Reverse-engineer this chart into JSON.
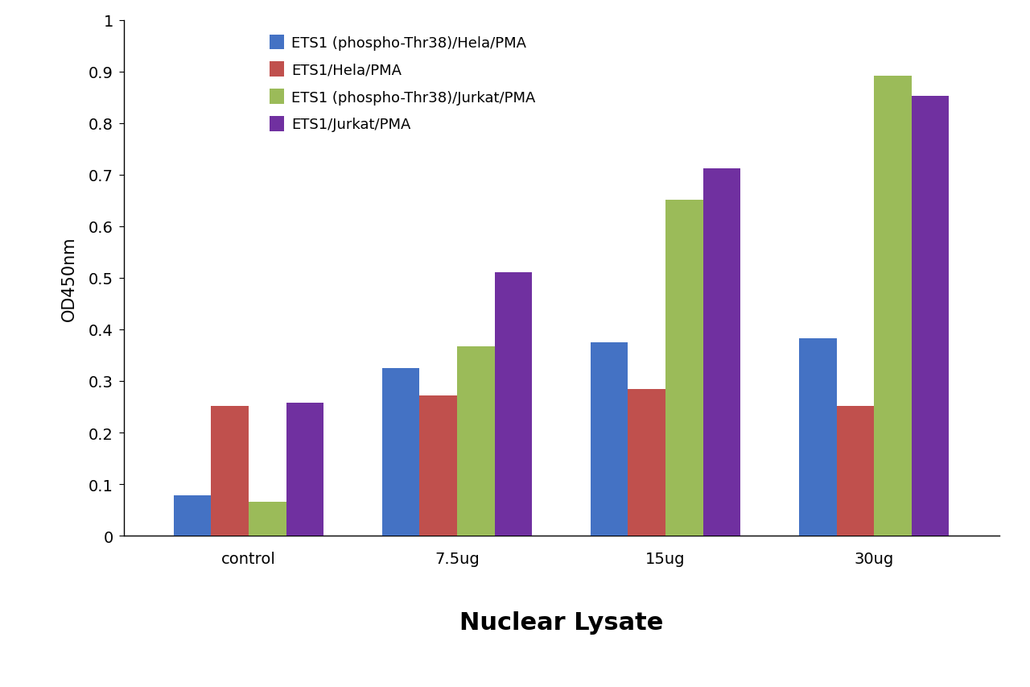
{
  "categories": [
    "control",
    "7.5ug",
    "15ug",
    "30ug"
  ],
  "series": [
    {
      "label": "ETS1 (phospho-Thr38)/Hela/PMA",
      "color": "#4472C4",
      "values": [
        0.078,
        0.325,
        0.375,
        0.383
      ]
    },
    {
      "label": "ETS1/Hela/PMA",
      "color": "#C0504D",
      "values": [
        0.252,
        0.272,
        0.285,
        0.252
      ]
    },
    {
      "label": "ETS1 (phospho-Thr38)/Jurkat/PMA",
      "color": "#9BBB59",
      "values": [
        0.065,
        0.367,
        0.652,
        0.892
      ]
    },
    {
      "label": "ETS1/Jurkat/PMA",
      "color": "#7030A0",
      "values": [
        0.258,
        0.51,
        0.712,
        0.852
      ]
    }
  ],
  "xlabel": "Nuclear Lysate",
  "ylabel": "OD450nm",
  "ylim": [
    0,
    1.0
  ],
  "yticks": [
    0,
    0.1,
    0.2,
    0.3,
    0.4,
    0.5,
    0.6,
    0.7,
    0.8,
    0.9,
    1.0
  ],
  "bar_width": 0.18,
  "background_color": "#FFFFFF",
  "xlabel_fontsize": 22,
  "ylabel_fontsize": 15,
  "tick_fontsize": 14,
  "legend_fontsize": 13
}
